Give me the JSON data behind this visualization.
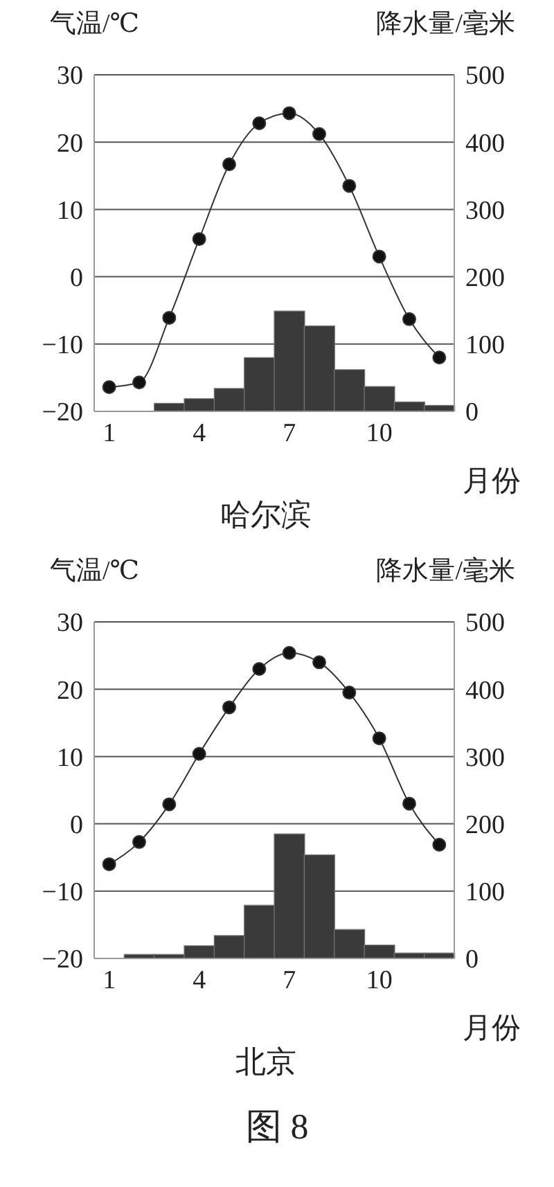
{
  "chart_data": [
    {
      "type": "line",
      "title": "哈尔滨",
      "xlabel": "月份",
      "ylabel": "气温/℃",
      "y2label": "降水量/毫米",
      "categories": [
        "1",
        null,
        null,
        "4",
        null,
        null,
        "7",
        null,
        null,
        "10",
        null,
        null
      ],
      "series": [
        {
          "type": "bar",
          "axis": "y2",
          "color": "#3a3a3a",
          "values": [
            0,
            0,
            12,
            19,
            34,
            80,
            149,
            127,
            62,
            37,
            14,
            9
          ]
        },
        {
          "color": "#333333",
          "values": [
            -16.4,
            -15.7,
            -6.1,
            5.6,
            16.7,
            22.8,
            24.3,
            21.2,
            13.5,
            3,
            -6.3,
            -12
          ]
        }
      ],
      "ylim": [
        -20,
        30
      ],
      "yticks": [
        -20,
        -10,
        0,
        10,
        20,
        30
      ],
      "y2lim": [
        0,
        500
      ],
      "y2ticks": [
        0,
        100,
        200,
        300,
        400,
        500
      ],
      "grid": "y",
      "marker": "circle",
      "line_style": "solid"
    },
    {
      "type": "line",
      "title": "北京",
      "xlabel": "月份",
      "ylabel": "气温/℃",
      "y2label": "降水量/毫米",
      "categories": [
        "1",
        null,
        null,
        "4",
        null,
        null,
        "7",
        null,
        null,
        "10",
        null,
        null
      ],
      "series": [
        {
          "type": "bar",
          "axis": "y2",
          "color": "#3a3a3a",
          "values": [
            0,
            6,
            6,
            19,
            34,
            79,
            185,
            154,
            43,
            20,
            8,
            8
          ]
        },
        {
          "color": "#333333",
          "values": [
            -6,
            -2.7,
            2.9,
            10.4,
            17.3,
            23,
            25.4,
            24,
            19.5,
            12.7,
            3,
            -3.1
          ]
        }
      ],
      "ylim": [
        -20,
        30
      ],
      "yticks": [
        -20,
        -10,
        0,
        10,
        20,
        30
      ],
      "y2lim": [
        0,
        500
      ],
      "y2ticks": [
        0,
        100,
        200,
        300,
        400,
        500
      ],
      "grid": "y",
      "marker": "circle",
      "line_style": "solid",
      "annotations": [
        "图 8"
      ]
    }
  ]
}
